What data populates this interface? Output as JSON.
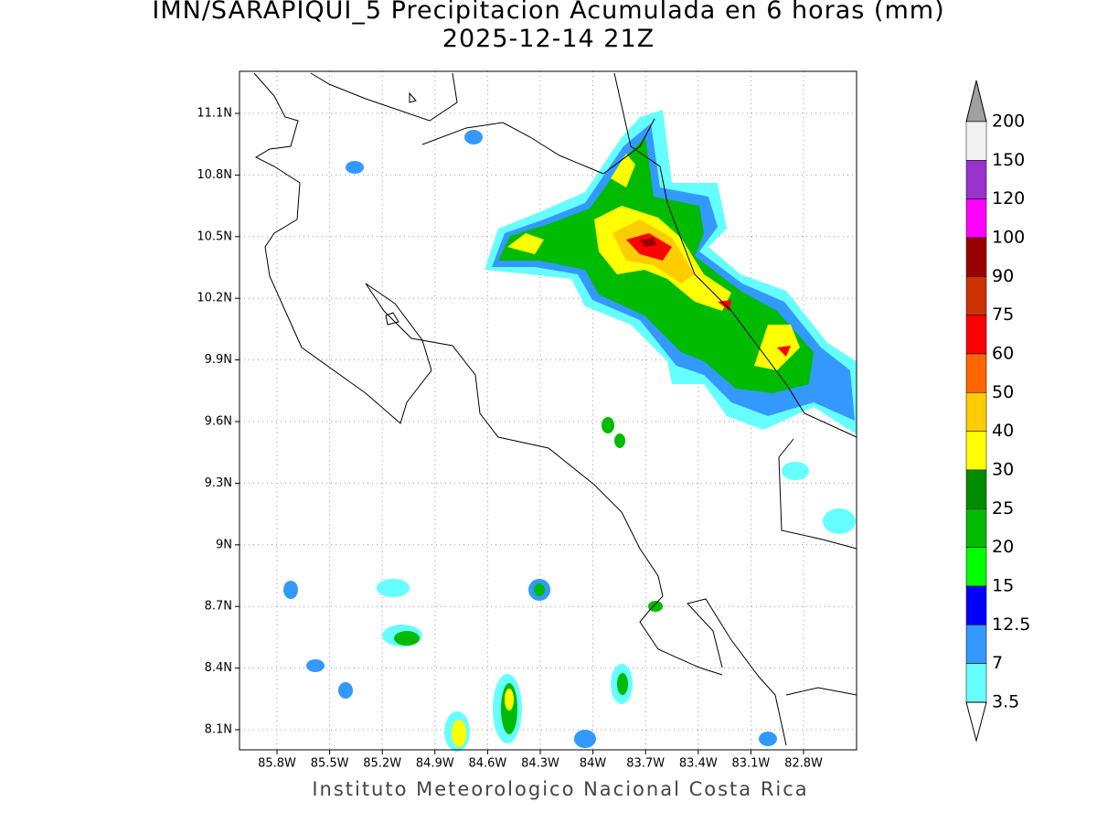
{
  "title": "IMN/SARAPIQUI_5 Precipitacion Acumulada en 6 horas (mm)",
  "subtitle": "2025-12-14 21Z",
  "map": {
    "xticks": [
      "85.8W",
      "85.5W",
      "85.2W",
      "84.9W",
      "84.6W",
      "84.3W",
      "84W",
      "83.7W",
      "83.4W",
      "83.1W",
      "82.8W"
    ],
    "yticks": [
      "11.1N",
      "10.8N",
      "10.5N",
      "10.2N",
      "9.9N",
      "9.6N",
      "9.3N",
      "9N",
      "8.7N",
      "8.4N",
      "8.1N"
    ]
  },
  "legend": {
    "labels": [
      "200",
      "150",
      "120",
      "100",
      "90",
      "75",
      "60",
      "50",
      "40",
      "30",
      "25",
      "20",
      "15",
      "12.5",
      "7",
      "3.5"
    ],
    "colors": [
      "#a0a0a0",
      "#f2f2f2",
      "#9933cc",
      "#ff00ff",
      "#990000",
      "#cc3300",
      "#ff0000",
      "#ff6600",
      "#ffcc00",
      "#ffff00",
      "#008c00",
      "#00bb00",
      "#00ff00",
      "#0000ff",
      "#3399ff",
      "#66ffff",
      "#ffffff"
    ]
  },
  "footer": "Instituto Meteorologico Nacional Costa Rica"
}
